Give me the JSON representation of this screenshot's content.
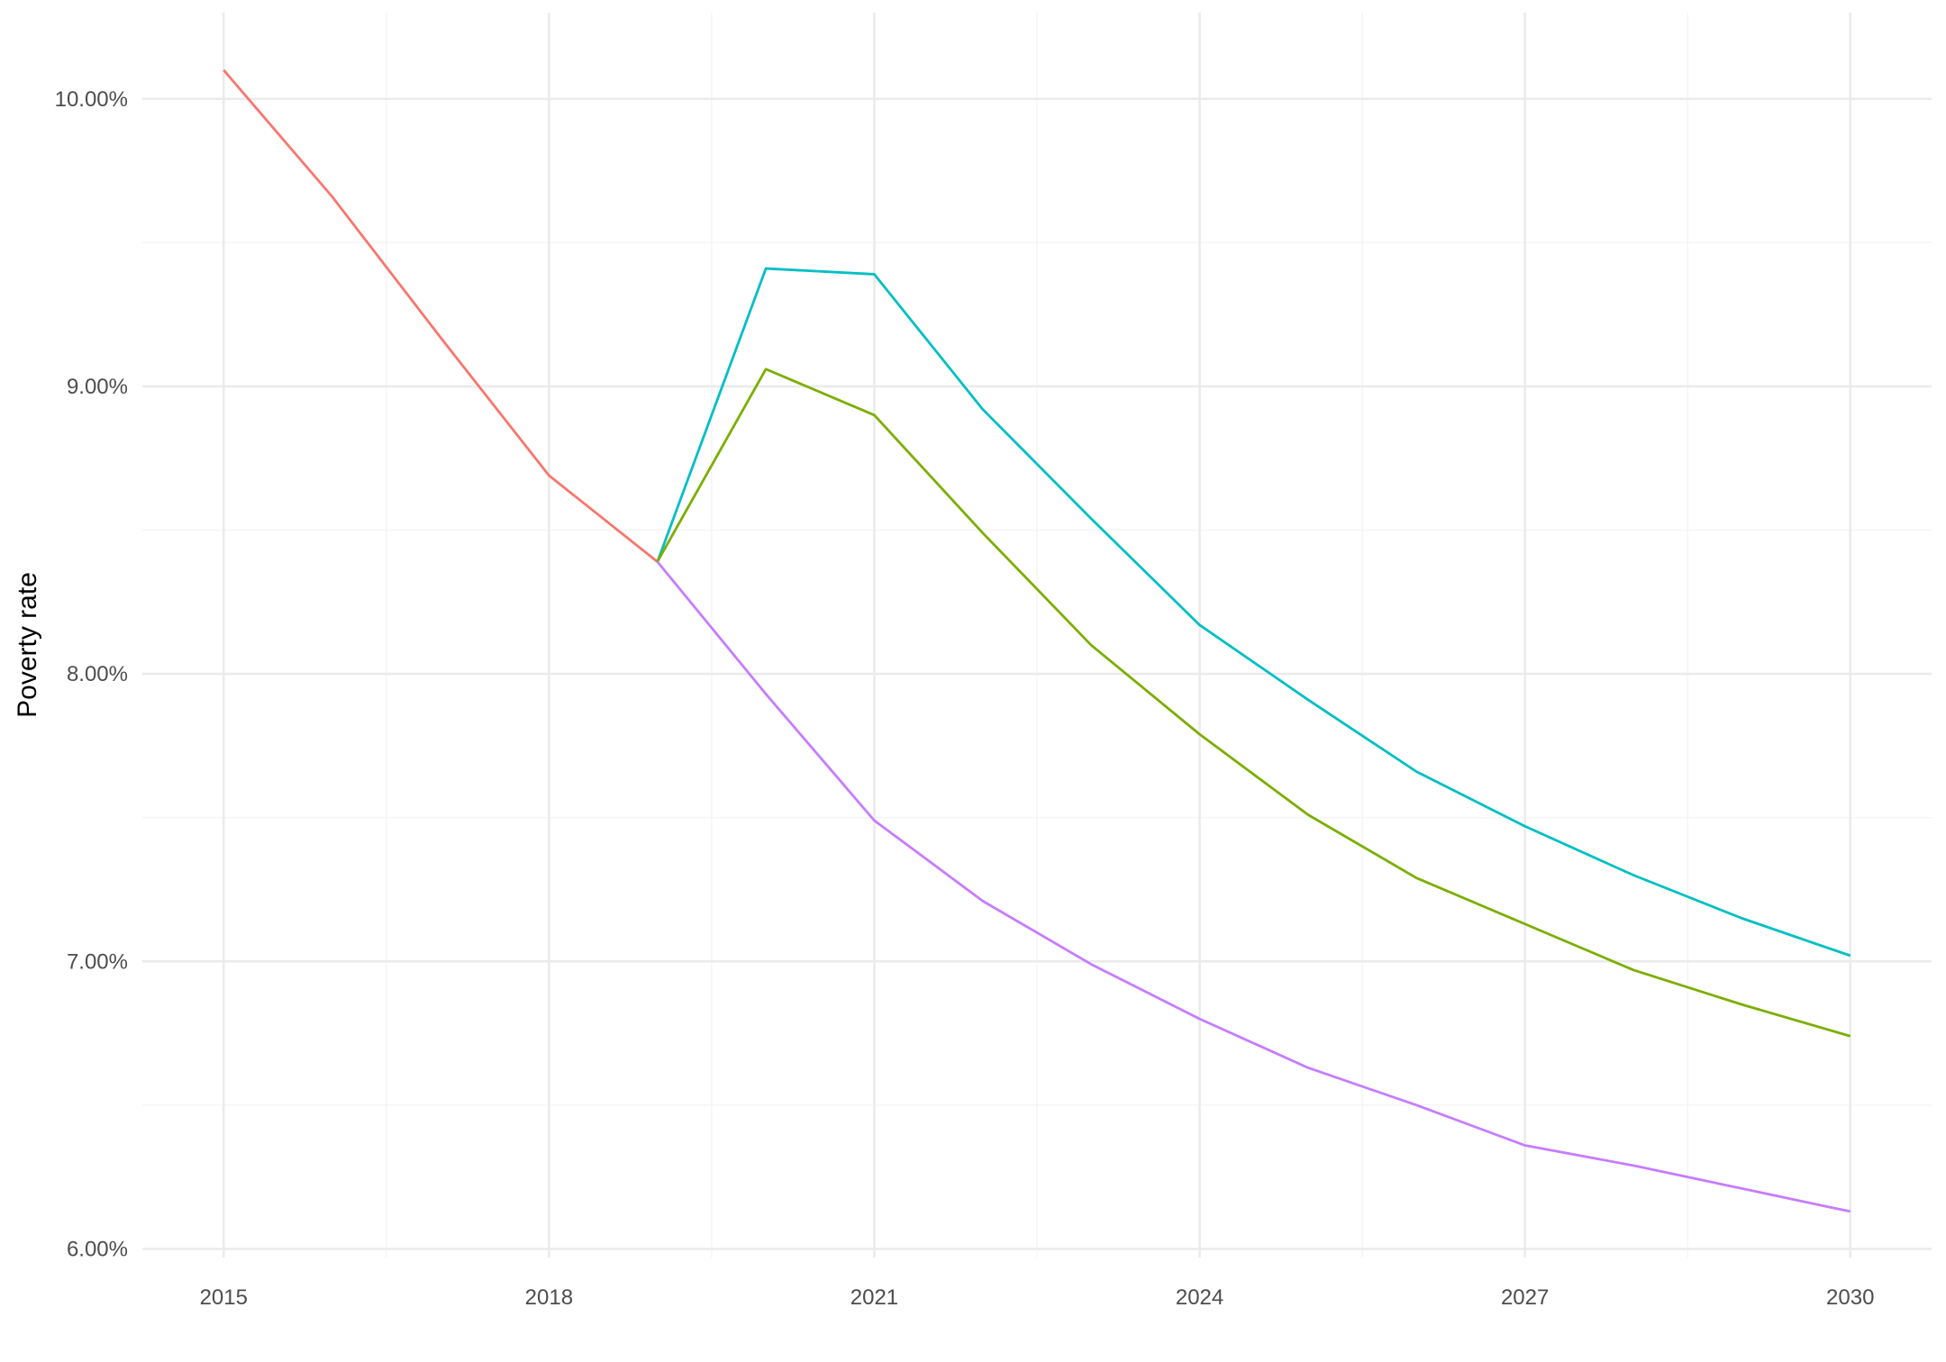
{
  "chart_data": {
    "type": "line",
    "title": "",
    "xlabel": "",
    "ylabel": "Poverty rate",
    "xlim": [
      2014.25,
      2030.75
    ],
    "ylim": [
      5.97,
      10.3
    ],
    "x_ticks": [
      2015,
      2018,
      2021,
      2024,
      2027,
      2030
    ],
    "x_tick_labels": [
      "2015",
      "2018",
      "2021",
      "2024",
      "2027",
      "2030"
    ],
    "y_ticks": [
      6,
      7,
      8,
      9,
      10
    ],
    "y_tick_labels": [
      "6.00%",
      "7.00%",
      "8.00%",
      "9.00%",
      "10.00%"
    ],
    "grid": true,
    "legend": "none",
    "series": [
      {
        "color": "#F8766D",
        "x": [
          2015,
          2016,
          2017,
          2018,
          2019
        ],
        "y": [
          10.1,
          9.66,
          9.17,
          8.69,
          8.39
        ]
      },
      {
        "color": "#00BFC4",
        "x": [
          2019,
          2020,
          2021,
          2022,
          2023,
          2024,
          2025,
          2026,
          2027,
          2028,
          2029,
          2030
        ],
        "y": [
          8.39,
          9.41,
          9.39,
          8.92,
          8.54,
          8.17,
          7.91,
          7.66,
          7.47,
          7.3,
          7.15,
          7.02
        ]
      },
      {
        "color": "#7CAE00",
        "x": [
          2019,
          2020,
          2021,
          2022,
          2023,
          2024,
          2025,
          2026,
          2027,
          2028,
          2029,
          2030
        ],
        "y": [
          8.39,
          9.06,
          8.9,
          8.49,
          8.1,
          7.79,
          7.51,
          7.29,
          7.13,
          6.97,
          6.85,
          6.74
        ]
      },
      {
        "color": "#C77CFF",
        "x": [
          2019,
          2020,
          2021,
          2022,
          2023,
          2024,
          2025,
          2026,
          2027,
          2028,
          2029,
          2030
        ],
        "y": [
          8.39,
          7.93,
          7.49,
          7.21,
          6.99,
          6.8,
          6.63,
          6.5,
          6.36,
          6.29,
          6.21,
          6.13
        ]
      }
    ]
  }
}
